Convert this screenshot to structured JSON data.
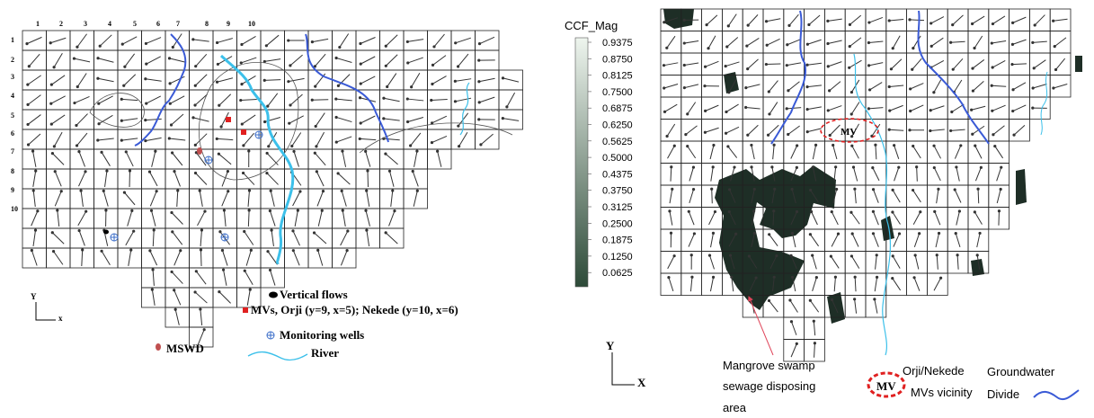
{
  "left_panel": {
    "column_labels": [
      "1",
      "2",
      "3",
      "4",
      "5",
      "6",
      "7",
      "8",
      "9",
      "10"
    ],
    "row_labels": [
      "1",
      "2",
      "3",
      "4",
      "5",
      "6",
      "7",
      "8",
      "9",
      "10"
    ],
    "legend": {
      "vertical_flows": "Vertical flows",
      "mvs": "MVs, Orji (y=9, x=5); Nekede (y=10, x=6)",
      "monitoring_wells": "Monitoring wells",
      "mswd": "MSWD",
      "river": "River"
    },
    "axis": {
      "y": "Y",
      "x": "x"
    }
  },
  "right_panel": {
    "colorbar_title": "CCF_Mag",
    "colorbar_ticks": [
      "0.9375",
      "0.8750",
      "0.8125",
      "0.7500",
      "0.6875",
      "0.6250",
      "0.5625",
      "0.5000",
      "0.4375",
      "0.3750",
      "0.3125",
      "0.2500",
      "0.1875",
      "0.1250",
      "0.0625"
    ],
    "mv_label": "MV",
    "legend": {
      "mangrove": [
        "Mangrove swamp",
        "sewage disposing",
        "area"
      ],
      "mv_vicinity": [
        "Orji/Nekede",
        "MVs vicinity"
      ],
      "groundwater_divide": [
        "Groundwater",
        "Divide"
      ]
    },
    "axis": {
      "y": "Y",
      "x": "X"
    }
  },
  "colors": {
    "grid": "#222222",
    "river": "#3cc0ea",
    "divide": "#3a5ad6",
    "mv_marker": "#e02020",
    "mswd": "#c05050",
    "well": "#3a6cc8",
    "swamp": "#1e2e26",
    "colorbar_top": "#eef5ee",
    "colorbar_bottom": "#2d4a38"
  }
}
